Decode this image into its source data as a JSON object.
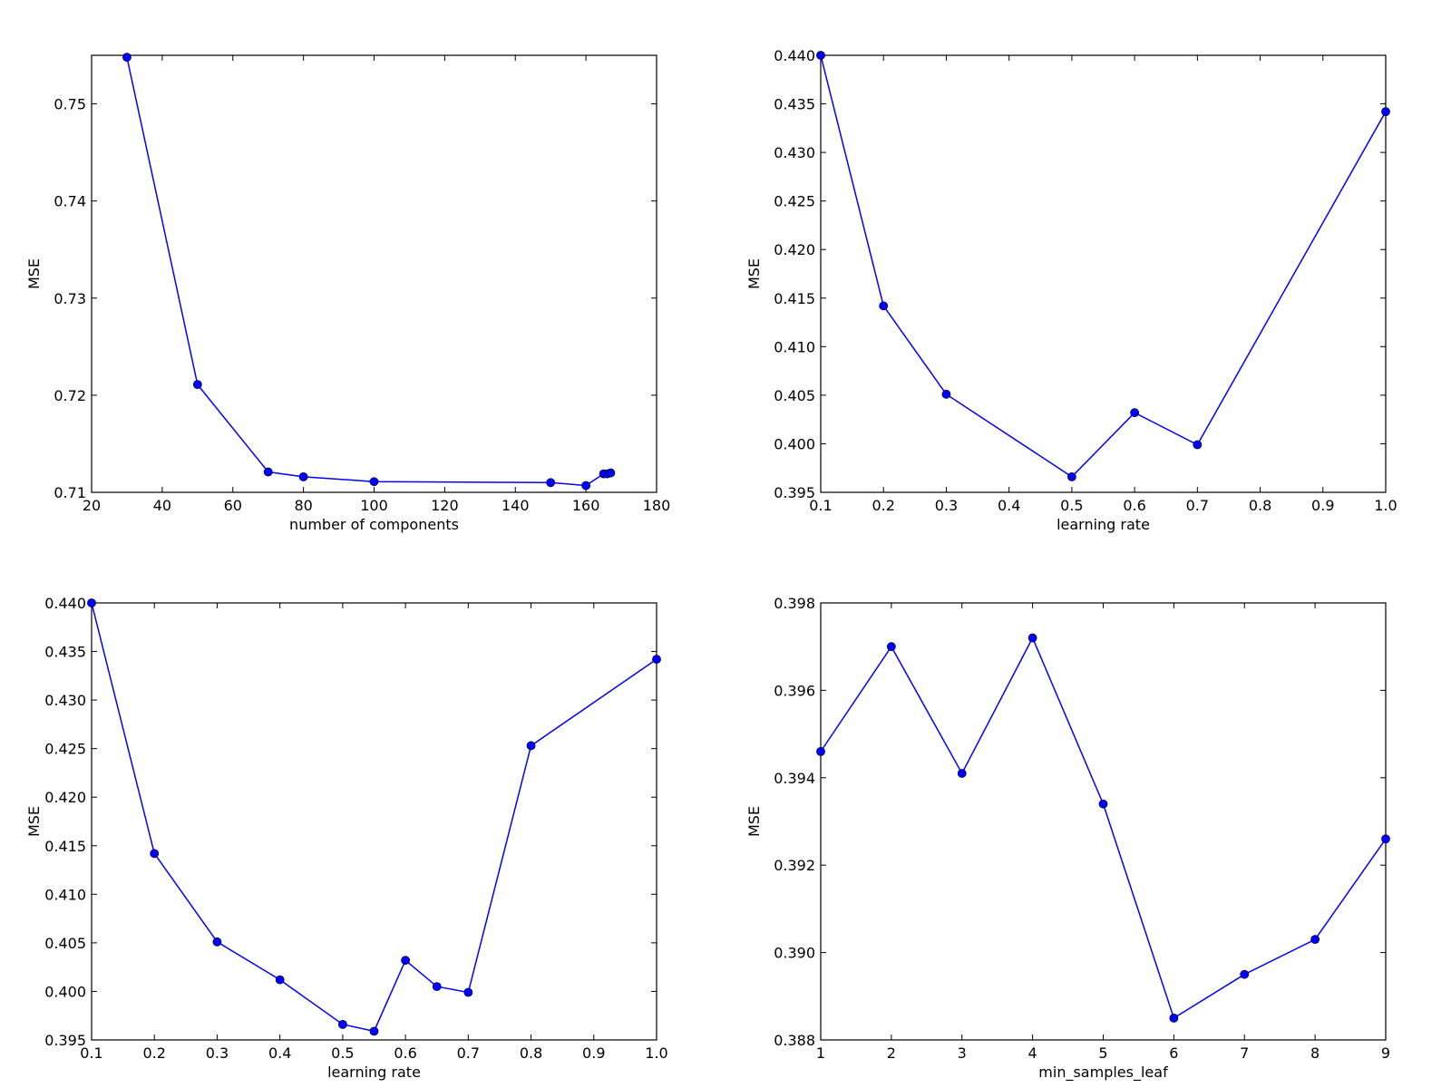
{
  "chart_data": [
    {
      "type": "line",
      "xlabel": "number of components",
      "ylabel": "MSE",
      "xlim": [
        20,
        180
      ],
      "ylim": [
        0.71,
        0.755
      ],
      "xticks": [
        "20",
        "40",
        "60",
        "80",
        "100",
        "120",
        "140",
        "160",
        "180"
      ],
      "yticks": [
        "0.71",
        "0.72",
        "0.73",
        "0.74",
        "0.75"
      ],
      "color": "#0000ff",
      "x": [
        30,
        50,
        70,
        80,
        100,
        150,
        160,
        165,
        166,
        167
      ],
      "y": [
        0.7548,
        0.7211,
        0.7121,
        0.7116,
        0.7111,
        0.711,
        0.7107,
        0.7119,
        0.7119,
        0.712
      ]
    },
    {
      "type": "line",
      "xlabel": "learning rate",
      "ylabel": "MSE",
      "xlim": [
        0.1,
        1.0
      ],
      "ylim": [
        0.395,
        0.44
      ],
      "xticks": [
        "0.1",
        "0.2",
        "0.3",
        "0.4",
        "0.5",
        "0.6",
        "0.7",
        "0.8",
        "0.9",
        "1.0"
      ],
      "yticks": [
        "0.395",
        "0.400",
        "0.405",
        "0.410",
        "0.415",
        "0.420",
        "0.425",
        "0.430",
        "0.435",
        "0.440"
      ],
      "color": "#0000ff",
      "x": [
        0.1,
        0.2,
        0.3,
        0.5,
        0.6,
        0.7,
        1.0
      ],
      "y": [
        0.44,
        0.4142,
        0.4051,
        0.3966,
        0.4032,
        0.3999,
        0.4342
      ]
    },
    {
      "type": "line",
      "xlabel": "learning rate",
      "ylabel": "MSE",
      "xlim": [
        0.1,
        1.0
      ],
      "ylim": [
        0.395,
        0.44
      ],
      "xticks": [
        "0.1",
        "0.2",
        "0.3",
        "0.4",
        "0.5",
        "0.6",
        "0.7",
        "0.8",
        "0.9",
        "1.0"
      ],
      "yticks": [
        "0.395",
        "0.400",
        "0.405",
        "0.410",
        "0.415",
        "0.420",
        "0.425",
        "0.430",
        "0.435",
        "0.440"
      ],
      "color": "#0000ff",
      "x": [
        0.1,
        0.2,
        0.3,
        0.4,
        0.5,
        0.55,
        0.6,
        0.65,
        0.7,
        0.8,
        1.0
      ],
      "y": [
        0.44,
        0.4142,
        0.4051,
        0.4012,
        0.3966,
        0.3959,
        0.4032,
        0.4005,
        0.3999,
        0.4253,
        0.4342
      ]
    },
    {
      "type": "line",
      "xlabel": "min_samples_leaf",
      "ylabel": "MSE",
      "xlim": [
        1,
        9
      ],
      "ylim": [
        0.388,
        0.398
      ],
      "xticks": [
        "1",
        "2",
        "3",
        "4",
        "5",
        "6",
        "7",
        "8",
        "9"
      ],
      "yticks": [
        "0.388",
        "0.390",
        "0.392",
        "0.394",
        "0.396",
        "0.398"
      ],
      "color": "#0000ff",
      "x": [
        1,
        2,
        3,
        4,
        5,
        6,
        7,
        8,
        9
      ],
      "y": [
        0.3946,
        0.397,
        0.3941,
        0.3972,
        0.3934,
        0.3885,
        0.3895,
        0.3903,
        0.3926
      ]
    }
  ]
}
